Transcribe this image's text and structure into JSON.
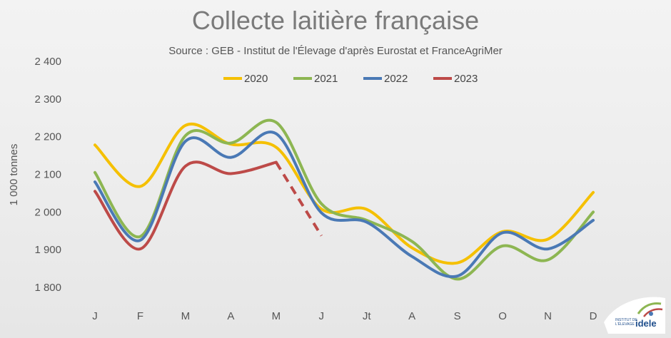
{
  "chart_data": {
    "type": "line",
    "title": "Collecte laitière française",
    "subtitle": "Source : GEB - Institut de l'Élevage d'après Eurostat et FranceAgriMer",
    "ylabel": "1 000 tonnes",
    "xlabel": "",
    "categories": [
      "J",
      "F",
      "M",
      "A",
      "M",
      "J",
      "Jt",
      "A",
      "S",
      "O",
      "N",
      "D"
    ],
    "ylim": [
      1800,
      2400
    ],
    "yticks": [
      1800,
      1900,
      2000,
      2100,
      2200,
      2300,
      2400
    ],
    "ytick_labels": [
      "1 800",
      "1 900",
      "2 000",
      "2 100",
      "2 200",
      "2 300",
      "2 400"
    ],
    "grid": false,
    "legend_position": "top",
    "series": [
      {
        "name": "2020",
        "color": "#f5c000",
        "values": [
          2178,
          2068,
          2230,
          2180,
          2172,
          2008,
          2007,
          1905,
          1865,
          1948,
          1928,
          2052
        ]
      },
      {
        "name": "2021",
        "color": "#8db652",
        "values": [
          2105,
          1935,
          2203,
          2183,
          2238,
          2022,
          1978,
          1922,
          1822,
          1910,
          1873,
          2000
        ]
      },
      {
        "name": "2022",
        "color": "#4a79b5",
        "values": [
          2080,
          1925,
          2188,
          2145,
          2208,
          1998,
          1973,
          1882,
          1830,
          1945,
          1902,
          1978
        ]
      },
      {
        "name": "2023",
        "color": "#bd4a48",
        "values": [
          2055,
          1902,
          2122,
          2102,
          2132,
          1937,
          null,
          null,
          null,
          null,
          null,
          null
        ],
        "dashed_from_index": 4
      }
    ],
    "logo_text": [
      "INSTITUT DE",
      "L'ÉLEVAGE",
      "idele"
    ]
  }
}
